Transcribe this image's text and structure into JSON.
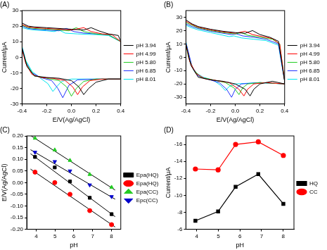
{
  "chart_data": [
    {
      "type": "line",
      "title": "(A)",
      "x_label": "E/V(Ag/AgCl)",
      "y_label": "Current/μA",
      "xlim": [
        -0.4,
        0.4
      ],
      "xticks": [
        -0.4,
        -0.2,
        {
          "value": 0,
          "label": "0.0"
        },
        0.2,
        0.4
      ],
      "ylim": [
        -30,
        30
      ],
      "yticks": [
        -30,
        -20,
        -10,
        0,
        10,
        20,
        30
      ],
      "grid": false,
      "legend": "right",
      "series": [
        {
          "name": "pH 3.94",
          "color": "#000000",
          "x": [
            -0.4,
            -0.35,
            -0.3,
            -0.2,
            -0.1,
            0,
            0.1,
            0.16,
            0.22,
            0.3,
            0.38,
            0.4,
            0.4,
            0.3,
            0.2,
            0.14,
            0.1,
            0.06,
            0,
            -0.1,
            -0.2,
            -0.3,
            -0.36,
            -0.4,
            -0.4
          ],
          "values": [
            22,
            20,
            19.5,
            19,
            18.5,
            18,
            17.5,
            19,
            17,
            15,
            14,
            10,
            -14,
            -14,
            -16,
            -20,
            -24,
            -19,
            -15,
            -13.5,
            -13,
            -12,
            -6,
            6,
            22
          ]
        },
        {
          "name": "pH 4.99",
          "color": "#ff0000",
          "x": [
            -0.4,
            -0.35,
            -0.3,
            -0.2,
            -0.1,
            0,
            0.1,
            0.16,
            0.25,
            0.33,
            0.4,
            0.4,
            0.25,
            0.15,
            0.09,
            0.05,
            0.01,
            -0.05,
            -0.15,
            -0.25,
            -0.32,
            -0.37,
            -0.4,
            -0.4
          ],
          "values": [
            21,
            19.5,
            19,
            18.5,
            18,
            17.5,
            19,
            16.5,
            15,
            14.5,
            10,
            -14,
            -14,
            -15,
            -19,
            -24,
            -19,
            -15,
            -13.5,
            -13,
            -11,
            -4,
            5,
            21
          ]
        },
        {
          "name": "pH 5.80",
          "color": "#22cc22",
          "x": [
            -0.4,
            -0.35,
            -0.3,
            -0.2,
            -0.1,
            -0.02,
            0.04,
            0.1,
            0.2,
            0.3,
            0.4,
            0.4,
            0.2,
            0.1,
            0.04,
            0,
            -0.04,
            -0.1,
            -0.2,
            -0.3,
            -0.36,
            -0.4,
            -0.4
          ],
          "values": [
            20.5,
            19,
            18.5,
            18,
            17.5,
            17,
            19,
            16.5,
            15,
            14.5,
            10,
            -14,
            -14,
            -15.5,
            -20,
            -25,
            -19,
            -15,
            -13.5,
            -12,
            -5,
            5,
            20.5
          ]
        },
        {
          "name": "pH 6.85",
          "color": "#2233ff",
          "x": [
            -0.4,
            -0.35,
            -0.3,
            -0.2,
            -0.1,
            -0.04,
            0.02,
            0.1,
            0.2,
            0.3,
            0.4,
            0.4,
            0.2,
            0.05,
            -0.02,
            -0.07,
            -0.11,
            -0.16,
            -0.25,
            -0.32,
            -0.37,
            -0.4,
            -0.4
          ],
          "values": [
            20,
            18.5,
            18,
            17.5,
            17,
            18.5,
            16.5,
            15.5,
            15,
            14.5,
            10,
            -14,
            -14,
            -14.5,
            -18,
            -26,
            -20,
            -15,
            -13,
            -10,
            -3,
            6,
            20
          ]
        },
        {
          "name": "pH 8.01",
          "color": "#00e5ee",
          "x": [
            -0.4,
            -0.35,
            -0.3,
            -0.2,
            -0.14,
            -0.1,
            -0.05,
            0.05,
            0.2,
            0.3,
            0.4,
            0.4,
            0.2,
            0,
            -0.08,
            -0.12,
            -0.15,
            -0.19,
            -0.25,
            -0.32,
            -0.37,
            -0.4,
            -0.4
          ],
          "values": [
            19,
            18,
            17.5,
            17,
            16.5,
            17.5,
            15.5,
            15,
            14.5,
            14,
            10,
            -14,
            -14,
            -14,
            -15.5,
            -19,
            -22,
            -17,
            -13.5,
            -9,
            -2,
            7,
            19
          ]
        }
      ]
    },
    {
      "type": "line",
      "title": "(B)",
      "x_label": "E/V(Ag/AgCl)",
      "y_label": "Current/μA",
      "xlim": [
        -0.4,
        0.4
      ],
      "xticks": [
        -0.4,
        -0.2,
        {
          "value": 0,
          "label": "0.0"
        },
        0.2,
        0.4
      ],
      "ylim": [
        -35,
        35
      ],
      "yticks": [
        -30,
        -20,
        -10,
        0,
        10,
        20,
        30
      ],
      "grid": false,
      "legend": "right",
      "series": [
        {
          "name": "pH 3.94",
          "color": "#000000",
          "x": [
            -0.4,
            -0.35,
            -0.3,
            -0.2,
            -0.1,
            0,
            0.08,
            0.14,
            0.2,
            0.28,
            0.35,
            0.4,
            0.4,
            0.3,
            0.2,
            0.15,
            0.12,
            0.08,
            0,
            -0.1,
            -0.2,
            -0.3,
            -0.36,
            -0.4,
            -0.4
          ],
          "values": [
            28,
            25,
            23,
            21,
            19.5,
            18.5,
            18,
            20,
            17,
            15,
            12,
            -18,
            -20,
            -18,
            -20,
            -24,
            -29,
            -24,
            -20,
            -18,
            -17,
            -15,
            -6,
            10,
            28
          ]
        },
        {
          "name": "pH 4.99",
          "color": "#ff0000",
          "x": [
            -0.4,
            -0.35,
            -0.3,
            -0.2,
            -0.1,
            0,
            0.08,
            0.14,
            0.22,
            0.3,
            0.36,
            0.4,
            0.4,
            0.25,
            0.15,
            0.1,
            0.07,
            0.03,
            -0.05,
            -0.15,
            -0.25,
            -0.32,
            -0.37,
            -0.4,
            -0.4
          ],
          "values": [
            27,
            24.5,
            22.5,
            20.5,
            19,
            18,
            19.5,
            17,
            15.5,
            14,
            10,
            -18,
            -20,
            -19,
            -20,
            -24,
            -29,
            -24,
            -19,
            -17.5,
            -16,
            -12,
            -3,
            10,
            27
          ]
        },
        {
          "name": "pH 5.80",
          "color": "#22cc22",
          "x": [
            -0.4,
            -0.35,
            -0.3,
            -0.2,
            -0.1,
            0,
            0.05,
            0.1,
            0.2,
            0.3,
            0.36,
            0.4,
            0.4,
            0.2,
            0.1,
            0.06,
            0.03,
            -0.01,
            -0.08,
            -0.18,
            -0.28,
            -0.34,
            -0.38,
            -0.4,
            -0.4
          ],
          "values": [
            26,
            24,
            22,
            20,
            18.5,
            17.5,
            18.5,
            16.5,
            15,
            13.5,
            10,
            -18,
            -20,
            -19,
            -20,
            -23,
            -28,
            -23,
            -19,
            -17,
            -15,
            -9,
            0,
            10,
            26
          ]
        },
        {
          "name": "pH 6.85",
          "color": "#2233ff",
          "x": [
            -0.4,
            -0.35,
            -0.3,
            -0.2,
            -0.1,
            -0.03,
            0.01,
            0.06,
            0.15,
            0.25,
            0.35,
            0.4,
            0.4,
            0.2,
            0.05,
            0,
            -0.03,
            -0.07,
            -0.13,
            -0.22,
            -0.3,
            -0.35,
            -0.4,
            -0.4
          ],
          "values": [
            25,
            23,
            21.5,
            19.5,
            18,
            17,
            17.5,
            16,
            15,
            13.5,
            10,
            -18,
            -20,
            -19,
            -20,
            -24,
            -30,
            -24,
            -19,
            -16.5,
            -14,
            -7,
            11,
            25
          ]
        },
        {
          "name": "pH 8.01",
          "color": "#00e5ee",
          "x": [
            -0.4,
            -0.35,
            -0.3,
            -0.2,
            -0.1,
            -0.05,
            -0.01,
            0.05,
            0.15,
            0.25,
            0.35,
            0.4,
            0.4,
            0.2,
            0,
            -0.05,
            -0.08,
            -0.12,
            -0.18,
            -0.26,
            -0.33,
            -0.37,
            -0.4,
            -0.4
          ],
          "values": [
            24,
            22,
            20.5,
            18.5,
            16.5,
            15.5,
            16,
            14.5,
            13.5,
            12.5,
            9,
            -18,
            -20,
            -19,
            -20,
            -22,
            -25,
            -21,
            -17,
            -15,
            -11,
            -2,
            12,
            24
          ]
        }
      ]
    },
    {
      "type": "scatter",
      "title": "(C)",
      "x_label": "pH",
      "y_label": "E/V(Ag/AgCl)",
      "xlim": [
        3.5,
        8.5
      ],
      "xticks": [
        4,
        5,
        6,
        7,
        8
      ],
      "ylim": [
        -0.2,
        0.2
      ],
      "yticks": [
        {
          "value": -0.2,
          "label": "-0.20"
        },
        {
          "value": -0.15,
          "label": "-0.15"
        },
        {
          "value": -0.1,
          "label": "-0.10"
        },
        {
          "value": -0.05,
          "label": "-0.05"
        },
        {
          "value": 0,
          "label": "0.00"
        },
        {
          "value": 0.05,
          "label": "0.05"
        },
        {
          "value": 0.1,
          "label": "0.10"
        },
        {
          "value": 0.15,
          "label": "0.15"
        },
        {
          "value": 0.2,
          "label": "0.20"
        }
      ],
      "grid": false,
      "legend": "right",
      "series": [
        {
          "name": "Epa(HQ)",
          "color": "#000000",
          "marker": "square",
          "x": [
            3.94,
            4.99,
            5.8,
            6.85,
            8.01
          ],
          "values": [
            0.11,
            0.065,
            0.005,
            -0.065,
            -0.135
          ],
          "fit": {
            "x": [
              3.7,
              8.2
            ],
            "values": [
              0.124,
              -0.146
            ]
          }
        },
        {
          "name": "Epa(HQ)",
          "color": "#ff0000",
          "marker": "circle",
          "x": [
            3.94,
            4.99,
            5.8,
            6.85,
            8.01
          ],
          "values": [
            0.045,
            0.0,
            -0.05,
            -0.12,
            -0.18
          ],
          "fit": {
            "x": [
              3.7,
              8.2
            ],
            "values": [
              0.058,
              -0.19
            ]
          }
        },
        {
          "name": "Epa(CC)",
          "color": "#22cc22",
          "marker": "triangle",
          "x": [
            3.94,
            4.99,
            5.8,
            6.85,
            8.01
          ],
          "values": [
            0.19,
            0.14,
            0.095,
            0.035,
            -0.02
          ],
          "fit": {
            "x": [
              3.7,
              8.2
            ],
            "values": [
              0.202,
              -0.032
            ]
          }
        },
        {
          "name": "Epc(CC)",
          "color": "#0000cc",
          "marker": "triangle-down",
          "x": [
            3.94,
            4.99,
            5.8,
            6.85,
            8.01
          ],
          "values": [
            0.13,
            0.09,
            0.05,
            -0.01,
            -0.06
          ],
          "fit": {
            "x": [
              3.7,
              8.2
            ],
            "values": [
              0.141,
              -0.071
            ]
          }
        }
      ]
    },
    {
      "type": "line",
      "title": "(D)",
      "x_label": "pH",
      "y_label": "Current/μA",
      "xlim": [
        3.5,
        8.5
      ],
      "xticks": [
        4,
        5,
        6,
        7,
        8
      ],
      "ylim": [
        -6,
        -17
      ],
      "yticks": [
        -16,
        -14,
        -12,
        -10,
        -8,
        -6
      ],
      "grid": false,
      "legend": "right",
      "series": [
        {
          "name": "HQ",
          "color": "#000000",
          "marker": "square",
          "x": [
            3.94,
            4.99,
            5.8,
            6.85,
            8.01
          ],
          "values": [
            -7.0,
            -8.1,
            -11.0,
            -12.5,
            -9.0
          ]
        },
        {
          "name": "CC",
          "color": "#ff0000",
          "marker": "circle",
          "x": [
            3.94,
            4.99,
            5.8,
            6.85,
            8.01
          ],
          "values": [
            -13.1,
            -13.0,
            -16.0,
            -16.3,
            -14.7
          ]
        }
      ]
    }
  ]
}
